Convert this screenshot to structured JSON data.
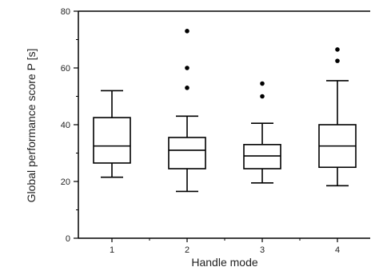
{
  "chart_data": {
    "type": "box",
    "title": "",
    "xlabel": "Handle mode",
    "ylabel": "Global performance score P [s]",
    "ylim": [
      0,
      80
    ],
    "yticks": [
      0,
      20,
      40,
      60,
      80
    ],
    "categories": [
      "1",
      "2",
      "3",
      "4"
    ],
    "grid": false,
    "boxes": [
      {
        "category": "1",
        "whisker_low": 21.5,
        "q1": 26.5,
        "median": 32.5,
        "q3": 42.5,
        "whisker_high": 52,
        "outliers": []
      },
      {
        "category": "2",
        "whisker_low": 16.5,
        "q1": 24.5,
        "median": 31,
        "q3": 35.5,
        "whisker_high": 43,
        "outliers": [
          53,
          60,
          73
        ]
      },
      {
        "category": "3",
        "whisker_low": 19.5,
        "q1": 24.5,
        "median": 29,
        "q3": 33,
        "whisker_high": 40.5,
        "outliers": [
          50,
          54.5
        ]
      },
      {
        "category": "4",
        "whisker_low": 18.5,
        "q1": 25,
        "median": 32.5,
        "q3": 40,
        "whisker_high": 55.5,
        "outliers": [
          62.5,
          66.5
        ]
      }
    ]
  }
}
